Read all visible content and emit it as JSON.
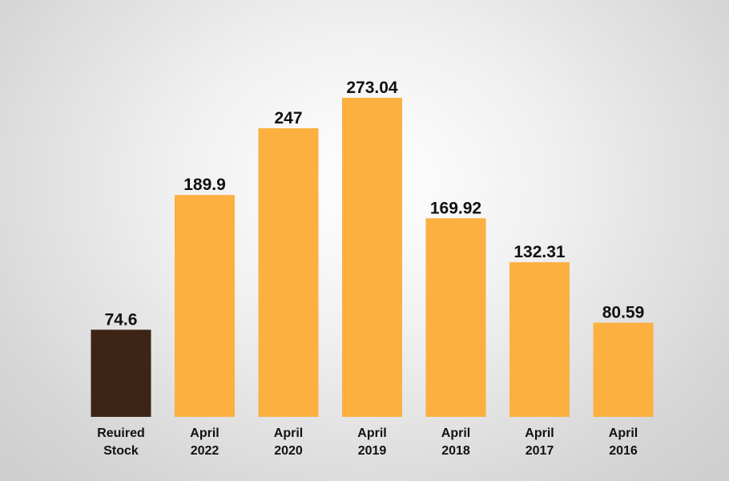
{
  "chart_data": {
    "type": "bar",
    "title": "",
    "xlabel": "",
    "ylabel": "",
    "ylim": [
      0,
      280
    ],
    "grid": false,
    "categories": [
      [
        "Reuired",
        "Stock"
      ],
      [
        "April",
        "2022"
      ],
      [
        "April",
        "2020"
      ],
      [
        "April",
        "2019"
      ],
      [
        "April",
        "2018"
      ],
      [
        "April",
        "2017"
      ],
      [
        "April",
        "2016"
      ]
    ],
    "values": [
      74.6,
      189.9,
      247,
      273.04,
      169.92,
      132.31,
      80.59
    ],
    "value_labels": [
      "74.6",
      "189.9",
      "247",
      "273.04",
      "169.92",
      "132.31",
      "80.59"
    ],
    "colors": [
      "#3d2417",
      "#fbb040",
      "#fbb040",
      "#fbb040",
      "#fbb040",
      "#fbb040",
      "#fbb040"
    ]
  }
}
